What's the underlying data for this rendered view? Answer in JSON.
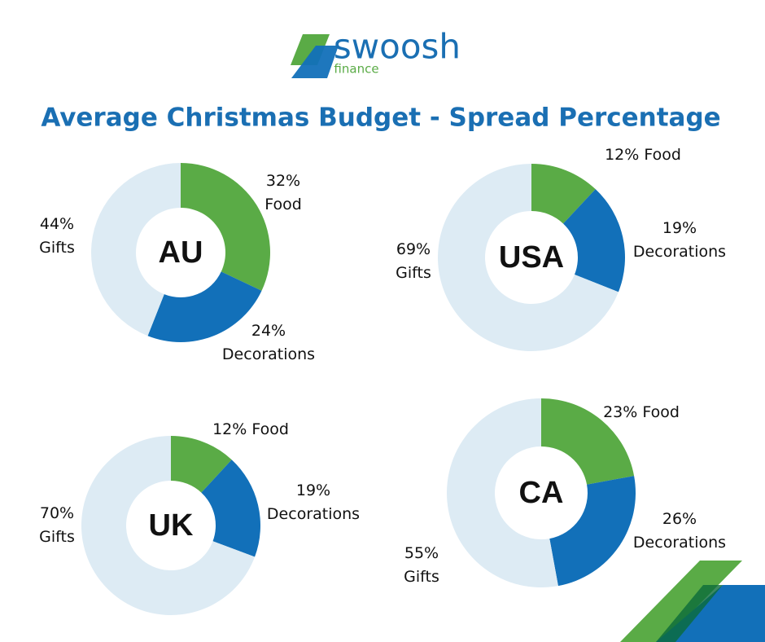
{
  "header": {
    "logo": "swoosh",
    "logo_sub": "finance"
  },
  "title": "Average Christmas Budget - Spread Percentage",
  "chart_data": [
    {
      "type": "pie",
      "center_label": "AU",
      "categories": [
        "Food",
        "Decorations",
        "Gifts"
      ],
      "values": [
        32,
        24,
        44
      ],
      "value_labels": [
        "32%",
        "24%",
        "44%"
      ],
      "colors": [
        "#5aab46",
        "#1270b9",
        "#ddebf4"
      ]
    },
    {
      "type": "pie",
      "center_label": "USA",
      "categories": [
        "Food",
        "Decorations",
        "Gifts"
      ],
      "values": [
        12,
        19,
        69
      ],
      "value_labels": [
        "12%",
        "19%",
        "69%"
      ],
      "colors": [
        "#5aab46",
        "#1270b9",
        "#ddebf4"
      ]
    },
    {
      "type": "pie",
      "center_label": "UK",
      "categories": [
        "Food",
        "Decorations",
        "Gifts"
      ],
      "values": [
        12,
        19,
        70
      ],
      "value_labels": [
        "12%",
        "19%",
        "70%"
      ],
      "colors": [
        "#5aab46",
        "#1270b9",
        "#ddebf4"
      ]
    },
    {
      "type": "pie",
      "center_label": "CA",
      "categories": [
        "Food",
        "Decorations",
        "Gifts"
      ],
      "values": [
        23,
        26,
        55
      ],
      "value_labels": [
        "23%",
        "26%",
        "55%"
      ],
      "colors": [
        "#5aab46",
        "#1270b9",
        "#ddebf4"
      ]
    }
  ]
}
